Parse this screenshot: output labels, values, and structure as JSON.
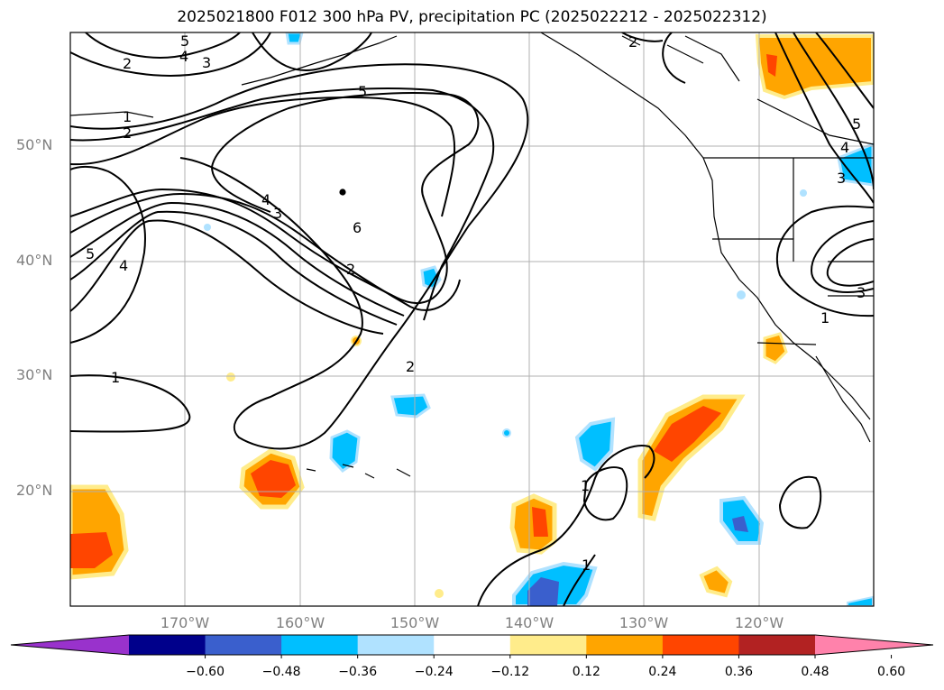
{
  "title": "2025021800 F012 300 hPa PV, precipitation PC (2025022212 - 2025022312)",
  "lat_labels": [
    "50°N",
    "40°N",
    "30°N",
    "20°N"
  ],
  "lon_labels": [
    "170°W",
    "160°W",
    "150°W",
    "140°W",
    "130°W",
    "120°W"
  ],
  "contour_labels": [
    "5",
    "4",
    "3",
    "2",
    "1",
    "2",
    "5",
    "6",
    "4",
    "3",
    "2",
    "5",
    "4",
    "1",
    "2",
    "1",
    "2",
    "1",
    "5",
    "4",
    "3",
    "3",
    "1"
  ],
  "colorbar": {
    "ticks": [
      "−0.60",
      "−0.48",
      "−0.36",
      "−0.24",
      "−0.12",
      "0.12",
      "0.24",
      "0.36",
      "0.48",
      "0.60"
    ],
    "colors": [
      "#9932cc",
      "#00008b",
      "#3a5fcd",
      "#00bfff",
      "#b0e2ff",
      "#ffffff",
      "#ffec8b",
      "#ffa500",
      "#ff4500",
      "#b22222",
      "#ff82ab"
    ]
  }
}
